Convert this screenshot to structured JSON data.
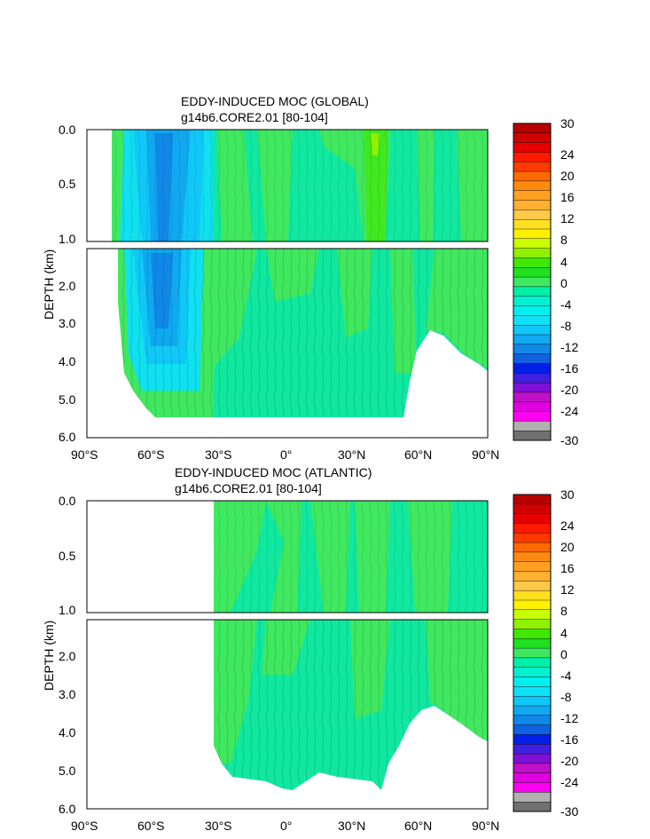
{
  "chart_data": [
    {
      "type": "heatmap",
      "title": "EDDY-INDUCED MOC (GLOBAL)",
      "subtitle": "g14b6.CORE2.01 [80-104]",
      "xlabel": "",
      "ylabel": "DEPTH (km)",
      "xlim": [
        -90,
        90
      ],
      "ylim": [
        6.0,
        0.0
      ],
      "x_ticks": [
        "90°S",
        "60°S",
        "30°S",
        "0°",
        "30°N",
        "60°N",
        "90°N"
      ],
      "y_ticks_upper": [
        "0.0",
        "0.5",
        "1.0"
      ],
      "y_ticks_lower": [
        "2.0",
        "3.0",
        "4.0",
        "5.0",
        "6.0"
      ],
      "features": [
        {
          "region": "upper",
          "kind": "min",
          "lat": -50,
          "depth": 0.3,
          "value": -12
        },
        {
          "region": "lower",
          "kind": "min",
          "lat": -50,
          "depth": 2.5,
          "value": -12
        },
        {
          "region": "upper",
          "kind": "max",
          "lat": 40,
          "depth": 0.1,
          "value": 4
        },
        {
          "region": "lower",
          "kind": "max",
          "lat": -30,
          "depth": 2.4,
          "value": 2
        }
      ],
      "colorbar": {
        "labels": [
          "30",
          "24",
          "20",
          "16",
          "12",
          "8",
          "4",
          "0",
          "-4",
          "-8",
          "-12",
          "-16",
          "-20",
          "-24",
          "-30"
        ],
        "colors": [
          "#b80000",
          "#d00000",
          "#e80000",
          "#ff1a00",
          "#ff3a00",
          "#ff6a00",
          "#ff8a10",
          "#ffa020",
          "#ffb030",
          "#ffc848",
          "#ffe020",
          "#fff000",
          "#c8ff00",
          "#90f000",
          "#40e800",
          "#20e020",
          "#40e860",
          "#00f0a8",
          "#00f0d0",
          "#00f0f0",
          "#10e0f8",
          "#10c8f8",
          "#10a8f0",
          "#1088e8",
          "#1060e0",
          "#0020e8",
          "#4020e0",
          "#8010d8",
          "#c010c8",
          "#e000e0",
          "#ff00f0",
          "#b0b0b0",
          "#707070"
        ]
      }
    },
    {
      "type": "heatmap",
      "title": "EDDY-INDUCED MOC (ATLANTIC)",
      "subtitle": "g14b6.CORE2.01 [80-104]",
      "xlabel": "",
      "ylabel": "DEPTH (km)",
      "xlim": [
        -90,
        90
      ],
      "ylim": [
        6.0,
        0.0
      ],
      "x_ticks": [
        "90°S",
        "60°S",
        "30°S",
        "0°",
        "30°N",
        "60°N",
        "90°N"
      ],
      "y_ticks_upper": [
        "0.0",
        "0.5",
        "1.0"
      ],
      "y_ticks_lower": [
        "2.0",
        "3.0",
        "4.0",
        "5.0",
        "6.0"
      ],
      "features": [
        {
          "region": "upper",
          "kind": "max",
          "lat": 0,
          "depth": 0.5,
          "value": 2
        },
        {
          "region": "lower",
          "kind": "max",
          "lat": -10,
          "depth": 2.2,
          "value": 2
        }
      ],
      "colorbar": {
        "labels": [
          "30",
          "24",
          "20",
          "16",
          "12",
          "8",
          "4",
          "0",
          "-4",
          "-8",
          "-12",
          "-16",
          "-20",
          "-24",
          "-30"
        ]
      }
    }
  ]
}
